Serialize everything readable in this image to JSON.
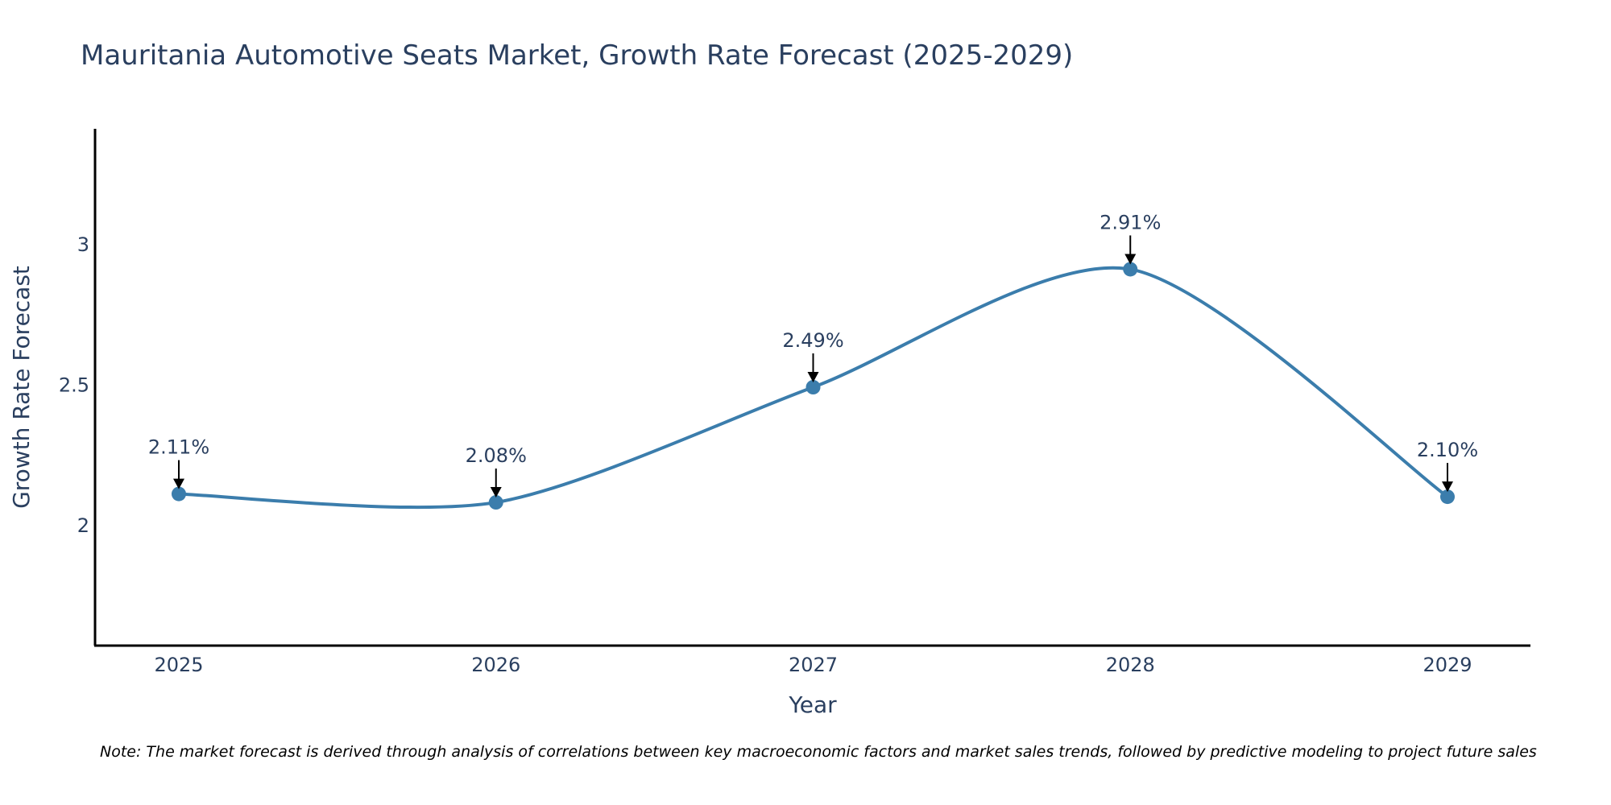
{
  "chart_data": {
    "type": "line",
    "title": "Mauritania Automotive Seats Market, Growth Rate Forecast (2025-2029)",
    "xlabel": "Year",
    "ylabel": "Growth Rate Forecast",
    "categories": [
      "2025",
      "2026",
      "2027",
      "2028",
      "2029"
    ],
    "series": [
      {
        "name": "Growth Rate Forecast",
        "values": [
          2.11,
          2.08,
          2.49,
          2.91,
          2.1
        ],
        "labels": [
          "2.11%",
          "2.08%",
          "2.49%",
          "2.91%",
          "2.10%"
        ],
        "color": "#3b7dac"
      }
    ],
    "ylim": [
      1.57,
      3.41
    ],
    "yticks": [
      2,
      2.5,
      3
    ],
    "ytick_labels": [
      "2",
      "2.5",
      "3"
    ],
    "grid": false,
    "line_shape": "spline"
  },
  "note": "Note: The market forecast is derived through analysis of correlations between key macroeconomic factors and market sales trends, followed by predictive modeling to project future sales"
}
